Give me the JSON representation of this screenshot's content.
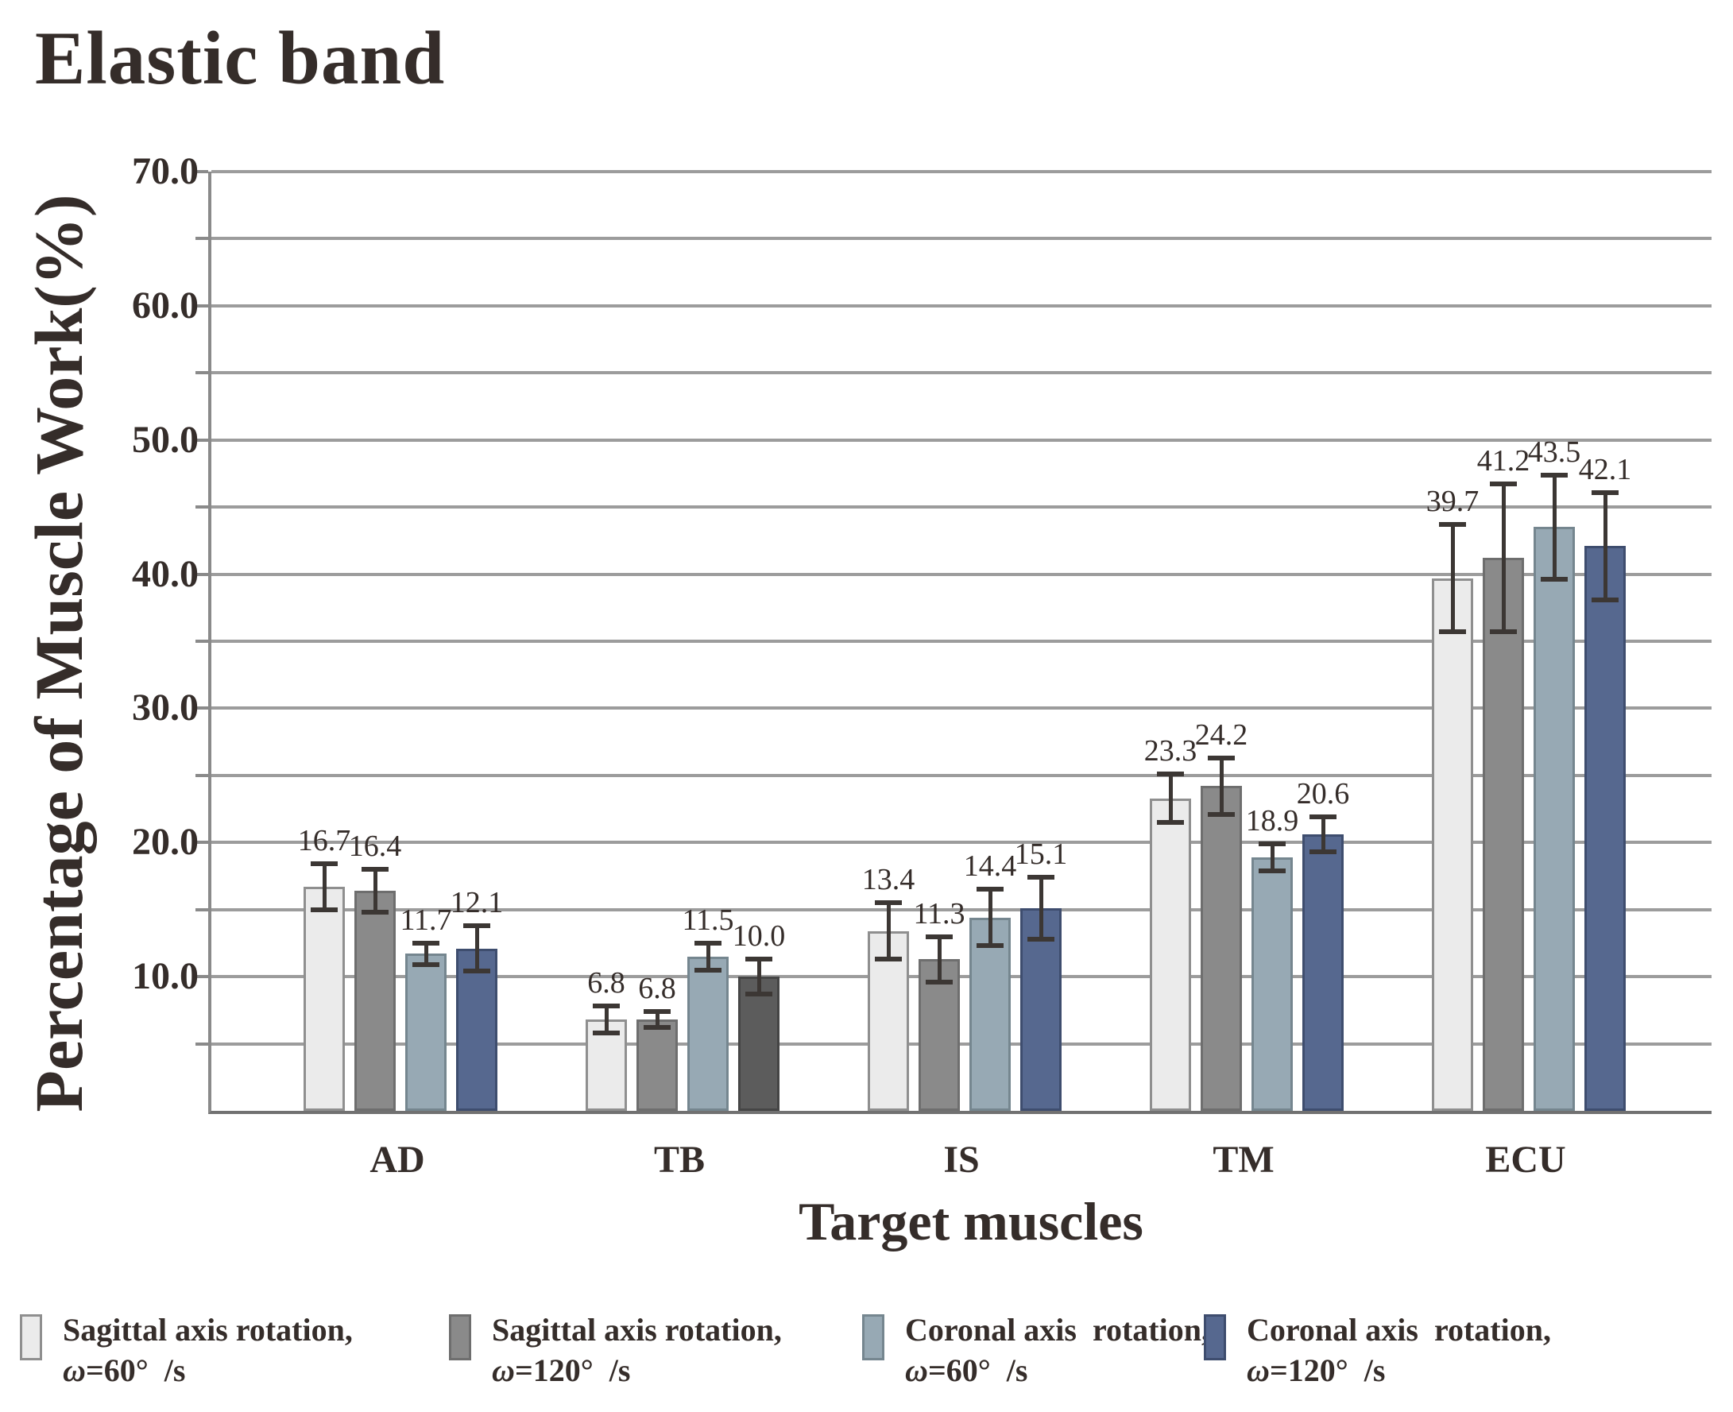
{
  "title": "Elastic band",
  "chart_data": {
    "type": "bar",
    "title": "Elastic band",
    "xlabel": "Target muscles",
    "ylabel": "Percentage of Muscle Work(%)",
    "ylim": [
      0,
      70
    ],
    "ytick_major_step": 10,
    "ytick_minor_step": 5,
    "ytick_labels": [
      "70.0",
      "60.0",
      "50.0",
      "40.0",
      "30.0",
      "20.0",
      "10.0"
    ],
    "grid": "horizontal gridlines at every 5 units, no vertical gridlines",
    "legend_position": "bottom",
    "categories": [
      "AD",
      "TB",
      "IS",
      "TM",
      "ECU"
    ],
    "series": [
      {
        "name": "Sagittal axis rotation, ω=60°/s",
        "legend_line1": "Sagittal axis rotation,",
        "legend_omega": "ω",
        "legend_line2_rest": "=60°  /s",
        "fill": "#ebebeb",
        "border": "#8f8f8f",
        "values": [
          16.7,
          6.8,
          13.4,
          23.3,
          39.7
        ],
        "errors": [
          1.7,
          1.0,
          2.1,
          1.8,
          4.0
        ]
      },
      {
        "name": "Sagittal axis rotation, ω=120°/s",
        "legend_line1": "Sagittal axis rotation,",
        "legend_omega": "ω",
        "legend_line2_rest": "=120°  /s",
        "fill": "#8a8a8a",
        "border": "#6e6e6e",
        "values": [
          16.4,
          6.8,
          11.3,
          24.2,
          41.2
        ],
        "errors": [
          1.6,
          0.6,
          1.7,
          2.1,
          5.5
        ]
      },
      {
        "name": "Coronal axis rotation, ω=60°/s",
        "legend_line1": "Coronal axis  rotation,",
        "legend_omega": "ω",
        "legend_line2_rest": "=60°  /s",
        "fill": "#97a9b4",
        "border": "#75868f",
        "values": [
          11.7,
          11.5,
          14.4,
          18.9,
          43.5
        ],
        "errors": [
          0.8,
          1.0,
          2.1,
          1.0,
          3.9
        ]
      },
      {
        "name": "Coronal axis rotation, ω=120°/s",
        "legend_line1": "Coronal axis  rotation,",
        "legend_omega": "ω",
        "legend_line2_rest": "=120°  /s",
        "fill": "#56688f",
        "border": "#3e4d6e",
        "values": [
          12.1,
          10.0,
          15.1,
          20.6,
          42.1
        ],
        "errors": [
          1.7,
          1.3,
          2.3,
          1.3,
          4.0
        ]
      }
    ],
    "value_label_format": "one decimal place shown above each error bar",
    "bar_color_overrides": [
      {
        "series": 3,
        "category": 1,
        "fill": "#5c5c5c",
        "border": "#454545"
      }
    ]
  }
}
